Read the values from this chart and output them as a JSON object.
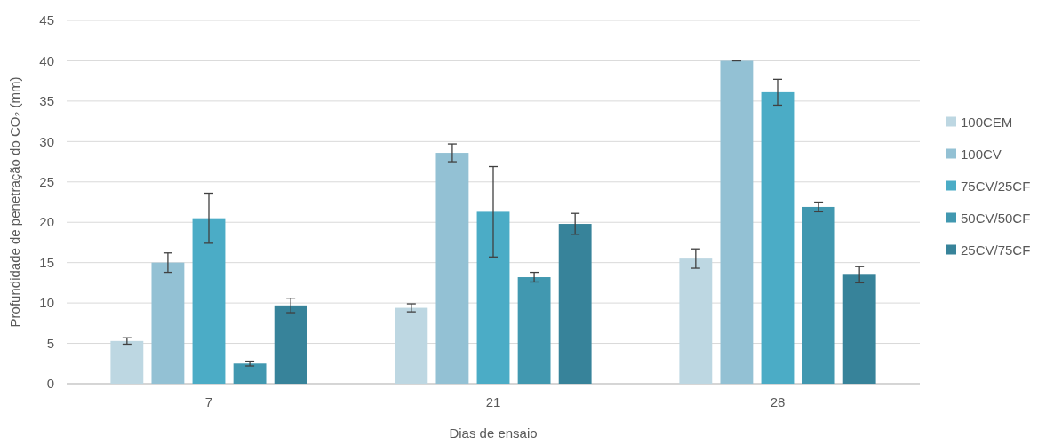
{
  "chart_data": {
    "type": "bar",
    "xlabel": "Dias de ensaio",
    "ylabel": "Profundidade de penetração do CO₂ (mm)",
    "categories": [
      "7",
      "21",
      "28"
    ],
    "series": [
      {
        "name": "100CEM",
        "color": "#bdd7e2",
        "values": [
          5.3,
          9.4,
          15.5
        ],
        "errors": [
          0.4,
          0.5,
          1.2
        ]
      },
      {
        "name": "100CV",
        "color": "#93c1d4",
        "values": [
          15.0,
          28.6,
          40.0
        ],
        "errors": [
          1.2,
          1.1,
          0
        ]
      },
      {
        "name": "75CV/25CF",
        "color": "#4bacc6",
        "values": [
          20.5,
          21.3,
          36.1
        ],
        "errors": [
          3.1,
          5.6,
          1.6
        ]
      },
      {
        "name": "50CV/50CF",
        "color": "#4198b0",
        "values": [
          2.5,
          13.2,
          21.9
        ],
        "errors": [
          0.3,
          0.6,
          0.6
        ]
      },
      {
        "name": "25CV/75CF",
        "color": "#37839a",
        "values": [
          9.7,
          19.8,
          13.5
        ],
        "errors": [
          0.9,
          1.3,
          1.0
        ]
      }
    ],
    "ylim": [
      0,
      45
    ],
    "yticks": [
      0,
      5,
      10,
      15,
      20,
      25,
      30,
      35,
      40,
      45
    ],
    "grid": "y",
    "legend": "right"
  }
}
